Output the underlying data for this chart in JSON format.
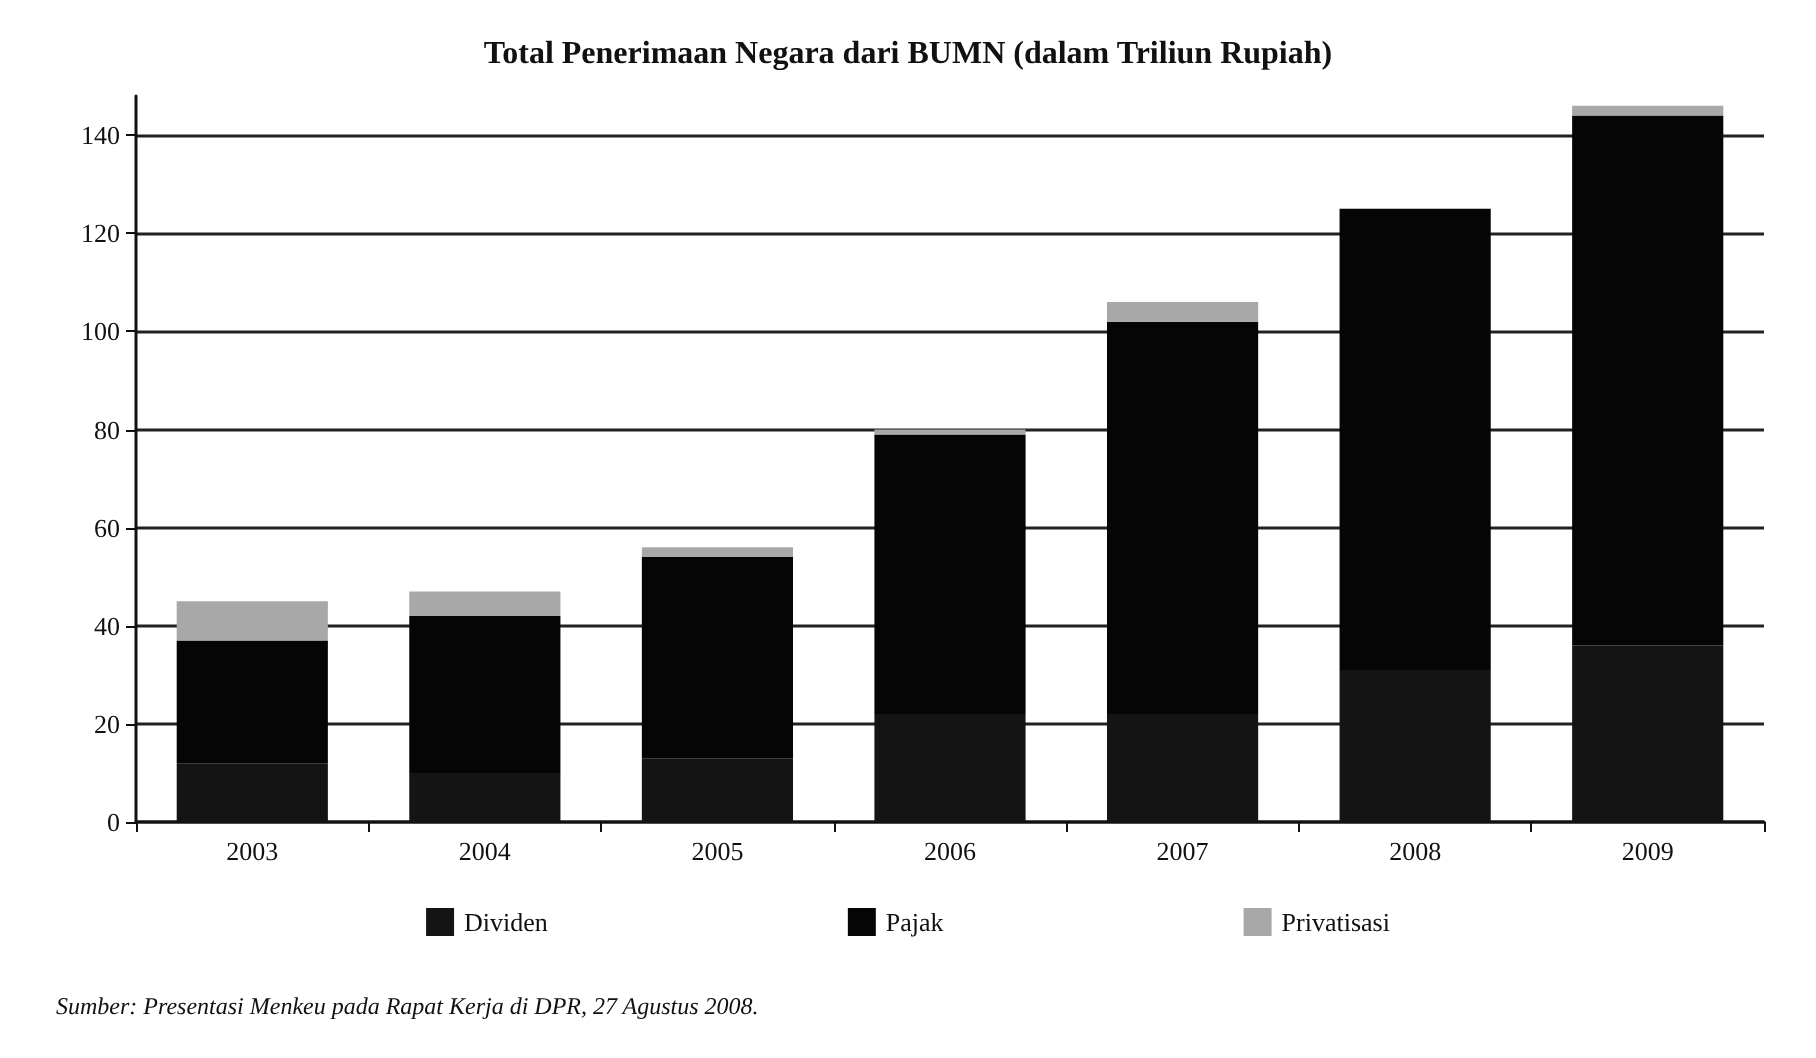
{
  "chart_data": {
    "type": "bar",
    "title": "Total Penerimaan Negara dari BUMN (dalam Triliun Rupiah)",
    "categories": [
      "2003",
      "2004",
      "2005",
      "2006",
      "2007",
      "2008",
      "2009"
    ],
    "stacked": true,
    "series": [
      {
        "name": "Dividen",
        "color": "#141414",
        "values": [
          12,
          10,
          13,
          22,
          22,
          31,
          36
        ]
      },
      {
        "name": "Pajak",
        "color": "#050505",
        "values": [
          25,
          32,
          41,
          57,
          80,
          94,
          108
        ]
      },
      {
        "name": "Privatisasi",
        "color": "#a8a8a8",
        "values": [
          8,
          5,
          2,
          1,
          4,
          0,
          2
        ]
      }
    ],
    "ylim": [
      0,
      148
    ],
    "yticks": [
      0,
      20,
      40,
      60,
      80,
      100,
      120,
      140
    ],
    "grid": "y",
    "legend": "bottom",
    "annotations": [
      "Sumber: Presentasi Menkeu pada Rapat Kerja di DPR, 27 Agustus 2008."
    ]
  }
}
